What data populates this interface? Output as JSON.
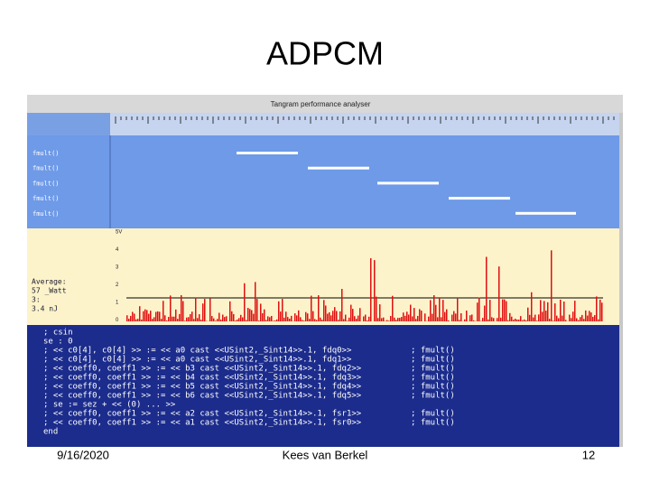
{
  "slide": {
    "title": "ADPCM",
    "date": "9/16/2020",
    "author": "Kees van Berkel",
    "page": "12"
  },
  "screenshot": {
    "window_title": "Tangram performance analyser",
    "row_labels": [
      "fmult()",
      "fmult()",
      "fmult()",
      "fmult()",
      "fmult()"
    ],
    "power_axis": [
      "5V",
      "4",
      "3",
      "2",
      "1",
      "0"
    ],
    "power_notes": [
      "Average:",
      "57 _Watt",
      "3:",
      "3.4 nJ"
    ],
    "code": [
      {
        "text": "; csin",
        "call": ""
      },
      {
        "text": "   se : 0",
        "call": ""
      },
      {
        "text": "; << c0[4], c0[4] >> := << a0 cast <<USint2,_Sint14>>.1, fdq0>>",
        "call": "; fmult()"
      },
      {
        "text": "; << c0[4], c0[4] >> := << a0 cast <<USint2,_Sint14>>.1, fdq1>>",
        "call": "; fmult()"
      },
      {
        "text": "; << coeff0, coeff1 >> := << b3 cast <<USint2,_Sint14>>.1, fdq2>>",
        "call": "; fmult()"
      },
      {
        "text": "; << coeff0, coeff1 >> := << b4 cast <<USint2,_Sint14>>.1, fdq3>>",
        "call": "; fmult()"
      },
      {
        "text": "; << coeff0, coeff1 >> := << b5 cast <<USint2,_Sint14>>.1, fdq4>>",
        "call": "; fmult()"
      },
      {
        "text": "; << coeff0, coeff1 >> := << b6 cast <<USint2,_Sint14>>.1, fdq5>>",
        "call": "; fmult()"
      },
      {
        "text": ";   se := sez + << (0) ... >>",
        "call": ""
      },
      {
        "text": "; << coeff0, coeff1 >> := << a2 cast <<USint2,_Sint14>>.1, fsr1>>",
        "call": "; fmult()"
      },
      {
        "text": "; << coeff0, coeff1 >> := << a1 cast <<USint2,_Sint14>>.1, fsr0>>",
        "call": "; fmult()"
      },
      {
        "text": "  end",
        "call": ""
      }
    ]
  }
}
